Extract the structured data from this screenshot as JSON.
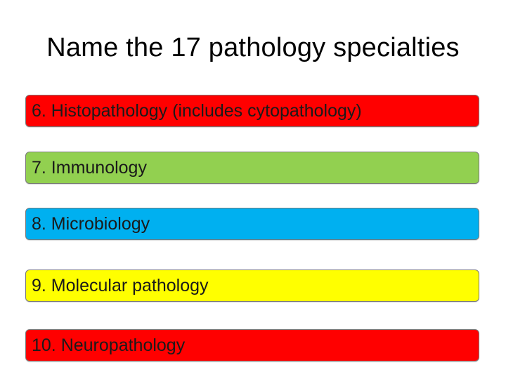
{
  "slide": {
    "title": "Name the 17 pathology specialties"
  },
  "items": [
    {
      "label": "6. Histopathology (includes cytopathology)",
      "color": "#ff0000"
    },
    {
      "label": "7. Immunology",
      "color": "#92d050"
    },
    {
      "label": "8. Microbiology",
      "color": "#00b0f0"
    },
    {
      "label": "9. Molecular pathology",
      "color": "#ffff00"
    },
    {
      "label": "10. Neuropathology",
      "color": "#ff0000"
    }
  ]
}
